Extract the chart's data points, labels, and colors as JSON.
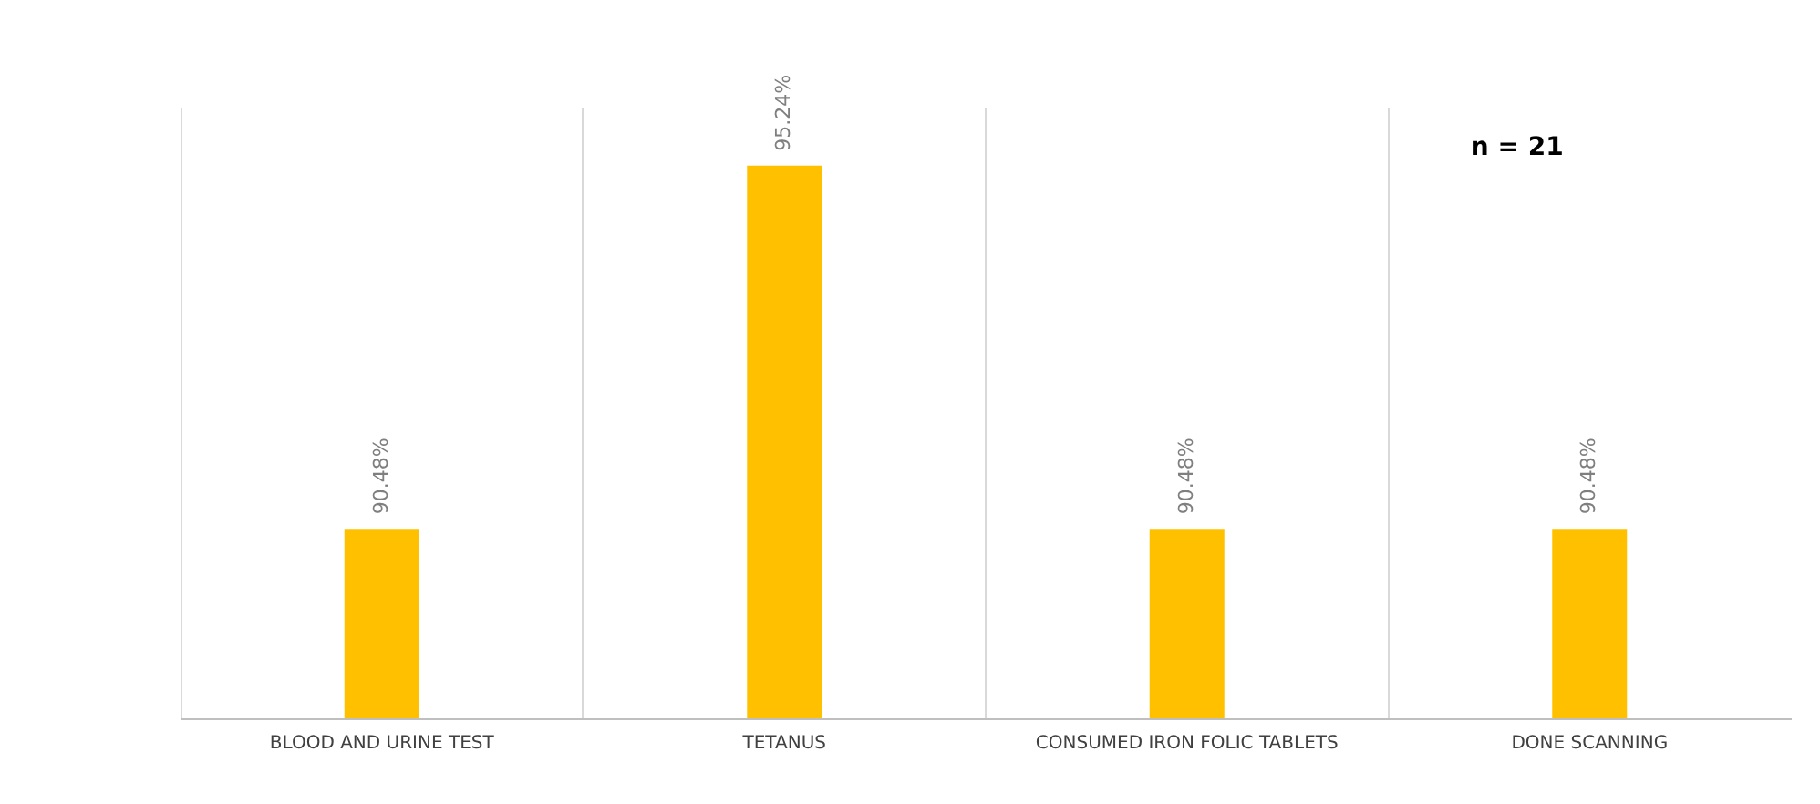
{
  "chart_data": {
    "type": "bar",
    "categories": [
      "BLOOD AND URINE TEST",
      "TETANUS",
      "CONSUMED IRON FOLIC TABLETS",
      "DONE SCANNING"
    ],
    "values": [
      90.48,
      95.24,
      90.48,
      90.48
    ],
    "value_labels": [
      "90.48%",
      "95.24%",
      "90.48%",
      "90.48%"
    ],
    "color": "#ffc000",
    "ylim": [
      88,
      96
    ],
    "tick_labels": "x",
    "grid": "x",
    "annotations": [
      "n = 21"
    ]
  }
}
